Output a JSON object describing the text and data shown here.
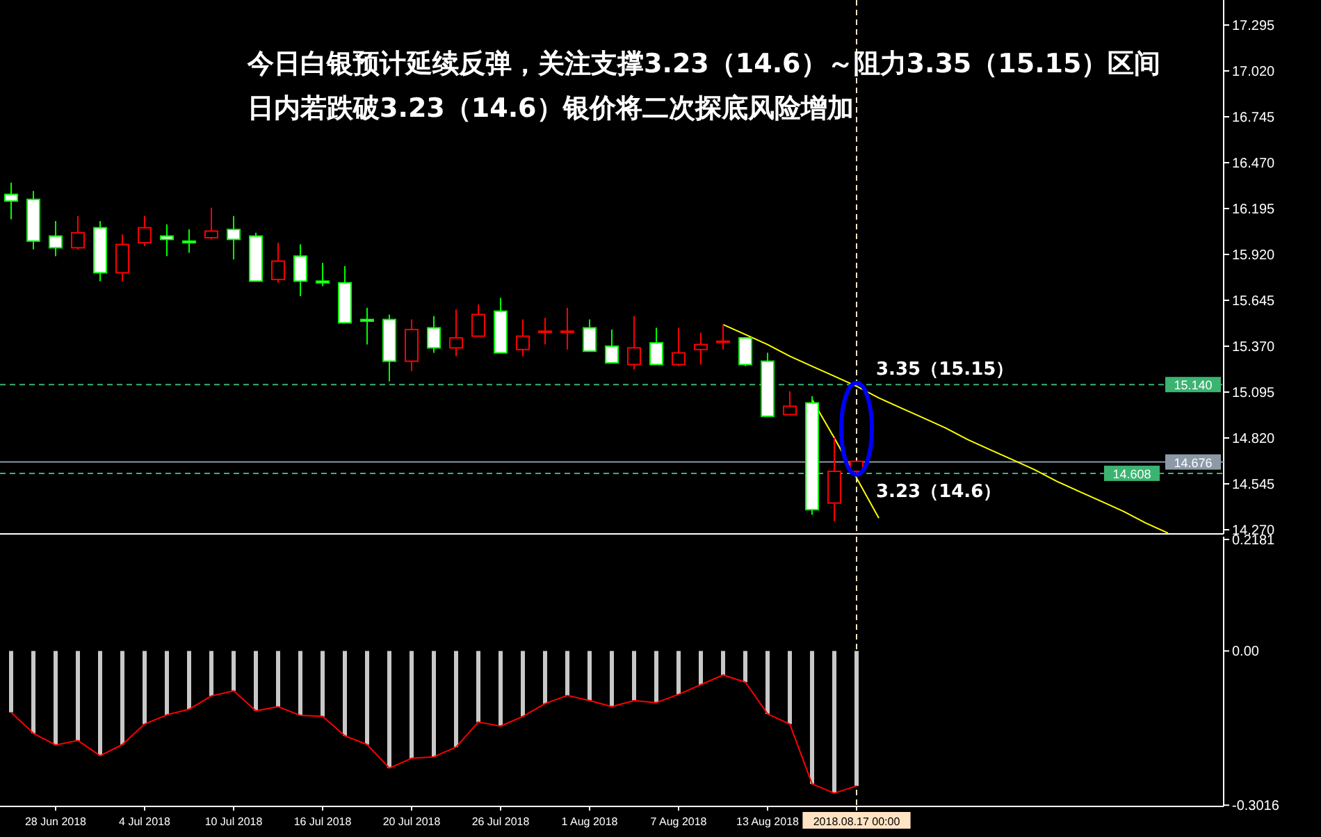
{
  "chart_data": [
    {
      "type": "candlestick",
      "title": "今日白银预计延续反弹，关注支撑3.23（14.6）～阻力3.35（15.15）区间",
      "subtitle": "日内若跌破3.23（14.6）银价将二次探底风险增加",
      "categories": [
        null,
        null,
        "28 Jun 2018",
        null,
        null,
        null,
        "4 Jul 2018",
        null,
        null,
        null,
        "10 Jul 2018",
        null,
        null,
        null,
        "16 Jul 2018",
        null,
        null,
        null,
        "20 Jul 2018",
        null,
        null,
        null,
        "26 Jul 2018",
        null,
        null,
        null,
        "1 Aug 2018",
        null,
        null,
        null,
        "7 Aug 2018",
        null,
        null,
        null,
        "13 Aug 2018",
        null,
        null,
        null,
        "2018.08.17 00:00",
        null,
        null,
        null,
        null,
        null,
        null,
        null,
        null,
        null,
        null,
        null,
        null,
        null,
        null,
        null,
        null
      ],
      "ohlc": [
        [
          16.28,
          16.35,
          16.13,
          16.24
        ],
        [
          16.25,
          16.3,
          15.95,
          16.0
        ],
        [
          16.03,
          16.12,
          15.91,
          15.96
        ],
        [
          15.96,
          16.15,
          15.95,
          16.05
        ],
        [
          16.08,
          16.12,
          15.76,
          15.81
        ],
        [
          15.81,
          16.04,
          15.76,
          15.98
        ],
        [
          15.99,
          16.15,
          15.97,
          16.08
        ],
        [
          16.03,
          16.1,
          15.91,
          16.01
        ],
        [
          16.0,
          16.07,
          15.93,
          15.99
        ],
        [
          16.02,
          16.2,
          16.01,
          16.06
        ],
        [
          16.07,
          16.15,
          15.89,
          16.01
        ],
        [
          16.03,
          16.05,
          15.76,
          15.76
        ],
        [
          15.77,
          15.99,
          15.75,
          15.88
        ],
        [
          15.91,
          15.98,
          15.67,
          15.76
        ],
        [
          15.76,
          15.87,
          15.73,
          15.75
        ],
        [
          15.75,
          15.85,
          15.51,
          15.51
        ],
        [
          15.53,
          15.6,
          15.38,
          15.52
        ],
        [
          15.53,
          15.56,
          15.16,
          15.28
        ],
        [
          15.28,
          15.53,
          15.22,
          15.47
        ],
        [
          15.48,
          15.55,
          15.33,
          15.36
        ],
        [
          15.36,
          15.59,
          15.31,
          15.42
        ],
        [
          15.43,
          15.62,
          15.43,
          15.56
        ],
        [
          15.58,
          15.66,
          15.33,
          15.33
        ],
        [
          15.35,
          15.53,
          15.31,
          15.43
        ],
        [
          15.46,
          15.54,
          15.38,
          15.46
        ],
        [
          15.46,
          15.6,
          15.35,
          15.46
        ],
        [
          15.48,
          15.53,
          15.34,
          15.34
        ],
        [
          15.37,
          15.47,
          15.27,
          15.27
        ],
        [
          15.26,
          15.55,
          15.23,
          15.36
        ],
        [
          15.39,
          15.48,
          15.26,
          15.26
        ],
        [
          15.26,
          15.48,
          15.25,
          15.33
        ],
        [
          15.35,
          15.45,
          15.26,
          15.38
        ],
        [
          15.4,
          15.5,
          15.35,
          15.4
        ],
        [
          15.42,
          15.42,
          15.25,
          15.26
        ],
        [
          15.28,
          15.33,
          14.95,
          14.95
        ],
        [
          14.96,
          15.1,
          14.96,
          15.01
        ],
        [
          15.03,
          15.07,
          14.36,
          14.39
        ],
        [
          14.43,
          14.82,
          14.32,
          14.62
        ],
        [
          14.62,
          14.68,
          14.61,
          14.68
        ],
        null,
        null,
        null,
        null,
        null,
        null,
        null,
        null,
        null,
        null,
        null,
        null,
        null,
        null,
        null,
        null
      ],
      "colors": [
        "#00ff00",
        "#00ff00",
        "#00ff00",
        "#ff0000",
        "#00ff00",
        "#ff0000",
        "#ff0000",
        "#00ff00",
        "#00ff00",
        "#ff0000",
        "#00ff00",
        "#00ff00",
        "#ff0000",
        "#00ff00",
        "#00ff00",
        "#00ff00",
        "#00ff00",
        "#00ff00",
        "#ff0000",
        "#00ff00",
        "#ff0000",
        "#ff0000",
        "#00ff00",
        "#ff0000",
        "#ff0000",
        "#ff0000",
        "#00ff00",
        "#00ff00",
        "#ff0000",
        "#00ff00",
        "#ff0000",
        "#ff0000",
        "#ff0000",
        "#00ff00",
        "#00ff00",
        "#ff0000",
        "#00ff00",
        "#ff0000",
        "#ff0000",
        null,
        null,
        null,
        null,
        null,
        null,
        null,
        null,
        null,
        null,
        null,
        null,
        null,
        null,
        null,
        null
      ],
      "series": [
        {
          "type": "line",
          "color": "#ffff00",
          "values": [
            null,
            null,
            null,
            null,
            null,
            null,
            null,
            null,
            null,
            null,
            null,
            null,
            null,
            null,
            null,
            null,
            null,
            null,
            null,
            null,
            null,
            null,
            null,
            null,
            null,
            null,
            null,
            null,
            null,
            null,
            null,
            null,
            15.5,
            15.44,
            15.38,
            15.31,
            15.25,
            15.19,
            15.13,
            15.06,
            15.0,
            14.94,
            14.88,
            14.81,
            14.75,
            14.69,
            14.63,
            14.56,
            14.5,
            14.44,
            14.38,
            14.31,
            14.25,
            null,
            null
          ]
        },
        {
          "type": "line",
          "color": "#ffff00",
          "values": [
            null,
            null,
            null,
            null,
            null,
            null,
            null,
            null,
            null,
            null,
            null,
            null,
            null,
            null,
            null,
            null,
            null,
            null,
            null,
            null,
            null,
            null,
            null,
            null,
            null,
            null,
            null,
            null,
            null,
            null,
            null,
            null,
            null,
            null,
            null,
            null,
            15.05,
            14.82,
            14.58,
            14.34,
            null,
            null,
            null,
            null,
            null,
            null,
            null,
            null,
            null,
            null,
            null,
            null,
            null,
            null,
            null
          ]
        }
      ],
      "ylim": [
        14.245,
        17.445
      ],
      "yticks": [
        {
          "value": 17.295,
          "label": "17.295"
        },
        {
          "value": 17.02,
          "label": "17.020"
        },
        {
          "value": 16.745,
          "label": "16.745"
        },
        {
          "value": 16.47,
          "label": "16.470"
        },
        {
          "value": 16.195,
          "label": "16.195"
        },
        {
          "value": 15.92,
          "label": "15.920"
        },
        {
          "value": 15.645,
          "label": "15.645"
        },
        {
          "value": 15.37,
          "label": "15.370"
        },
        {
          "value": 15.095,
          "label": "15.095"
        },
        {
          "value": 14.82,
          "label": "14.820"
        },
        {
          "value": 14.545,
          "label": "14.545"
        },
        {
          "value": 14.27,
          "label": "14.270"
        }
      ],
      "tick_labels": "y",
      "ref_lines": [
        {
          "axis": "y",
          "value": 15.14,
          "label": "15.140",
          "color": "#3cb371",
          "line_style": "dashed"
        },
        {
          "axis": "y",
          "value": 14.676,
          "label": "14.676",
          "color": "#8c9aa8",
          "line_style": "solid"
        },
        {
          "axis": "y",
          "value": 14.608,
          "label": "14.608",
          "color": "#3cb371",
          "line_style": "dashed"
        },
        {
          "axis": "x",
          "value": "2018.08.17 00:00",
          "color": "#ffe4c4",
          "line_style": "dashed"
        }
      ],
      "annotations": [
        {
          "text": "3.35（15.15）",
          "x": "2018.08.17 00:00",
          "y": 15.15
        },
        {
          "text": "3.23（14.6）",
          "x": "2018.08.17 00:00",
          "y": 14.6
        }
      ]
    },
    {
      "type": "bar",
      "categories": [
        null,
        null,
        "28 Jun 2018",
        null,
        null,
        null,
        "4 Jul 2018",
        null,
        null,
        null,
        "10 Jul 2018",
        null,
        null,
        null,
        "16 Jul 2018",
        null,
        null,
        null,
        "20 Jul 2018",
        null,
        null,
        null,
        "26 Jul 2018",
        null,
        null,
        null,
        "1 Aug 2018",
        null,
        null,
        null,
        "7 Aug 2018",
        null,
        null,
        null,
        "13 Aug 2018",
        null,
        null,
        null,
        "2018.08.17 00:00",
        null,
        null,
        null,
        null,
        null,
        null,
        null,
        null,
        null,
        null,
        null,
        null,
        null,
        null,
        null,
        null
      ],
      "series": [
        {
          "type": "bar",
          "color": "#c8c8c8",
          "values": [
            -0.12,
            -0.161,
            -0.184,
            -0.175,
            -0.205,
            -0.183,
            -0.143,
            -0.125,
            -0.114,
            -0.088,
            -0.078,
            -0.117,
            -0.109,
            -0.126,
            -0.128,
            -0.166,
            -0.183,
            -0.229,
            -0.21,
            -0.207,
            -0.188,
            -0.139,
            -0.147,
            -0.128,
            -0.103,
            -0.087,
            -0.097,
            -0.109,
            -0.097,
            -0.101,
            -0.085,
            -0.066,
            -0.047,
            -0.061,
            -0.123,
            -0.143,
            -0.26,
            -0.278,
            -0.264,
            null,
            null,
            null,
            null,
            null,
            null,
            null,
            null,
            null,
            null,
            null,
            null,
            null,
            null,
            null,
            null
          ]
        },
        {
          "type": "line",
          "color": "#ff0000",
          "values": [
            -0.12,
            -0.161,
            -0.184,
            -0.175,
            -0.205,
            -0.183,
            -0.143,
            -0.125,
            -0.114,
            -0.088,
            -0.078,
            -0.117,
            -0.109,
            -0.126,
            -0.128,
            -0.166,
            -0.183,
            -0.229,
            -0.21,
            -0.207,
            -0.188,
            -0.139,
            -0.147,
            -0.128,
            -0.103,
            -0.087,
            -0.097,
            -0.109,
            -0.097,
            -0.101,
            -0.085,
            -0.066,
            -0.047,
            -0.061,
            -0.123,
            -0.143,
            -0.26,
            -0.278,
            -0.264,
            null,
            null,
            null,
            null,
            null,
            null,
            null,
            null,
            null,
            null,
            null,
            null,
            null,
            null,
            null,
            null
          ]
        }
      ],
      "ylim": [
        -0.304,
        0.2235
      ],
      "yticks": [
        0.2181,
        {
          "value": 0,
          "label": "0.00"
        },
        -0.3016
      ],
      "ref_lines": [
        {
          "axis": "x",
          "value": "2018.08.17 00:00",
          "color": "#ffe4c4",
          "line_style": "dashed"
        }
      ]
    }
  ]
}
